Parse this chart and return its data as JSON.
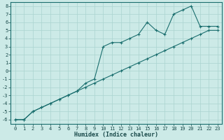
{
  "xlabel": "Humidex (Indice chaleur)",
  "bg_color": "#cceae7",
  "line_color": "#1a6e6e",
  "grid_color": "#aad4d0",
  "xlim": [
    -0.5,
    23.5
  ],
  "ylim": [
    -6.5,
    8.5
  ],
  "xticks": [
    0,
    1,
    2,
    3,
    4,
    5,
    6,
    7,
    8,
    9,
    10,
    11,
    12,
    13,
    14,
    15,
    16,
    17,
    18,
    19,
    20,
    21,
    22,
    23
  ],
  "yticks": [
    -6,
    -5,
    -4,
    -3,
    -2,
    -1,
    0,
    1,
    2,
    3,
    4,
    5,
    6,
    7,
    8
  ],
  "line1_x": [
    0,
    1,
    2,
    3,
    4,
    5,
    6,
    7,
    8,
    9,
    10,
    11,
    12,
    13,
    14,
    15,
    16,
    17,
    18,
    19,
    20,
    21,
    22,
    23
  ],
  "line1_y": [
    -6,
    -6,
    -5,
    -4.5,
    -4,
    -3.5,
    -3,
    -2.5,
    -2,
    -1.5,
    -1,
    -0.5,
    0,
    0.5,
    1,
    1.5,
    2,
    2.5,
    3,
    3.5,
    4,
    4.5,
    5,
    5
  ],
  "line2_x": [
    0,
    1,
    2,
    3,
    4,
    5,
    6,
    7,
    8,
    9,
    10,
    11,
    12,
    13,
    14,
    15,
    16,
    17,
    18,
    19,
    20,
    21,
    22,
    23
  ],
  "line2_y": [
    -6,
    -6,
    -5,
    -4.5,
    -4,
    -3.5,
    -3,
    -2.5,
    -1.5,
    -1,
    3.0,
    3.5,
    3.5,
    4.0,
    4.5,
    6.0,
    5.0,
    4.5,
    7.0,
    7.5,
    8.0,
    5.5,
    5.5,
    5.5
  ],
  "tick_fontsize": 5,
  "xlabel_fontsize": 6,
  "marker_size": 3,
  "linewidth": 0.8
}
